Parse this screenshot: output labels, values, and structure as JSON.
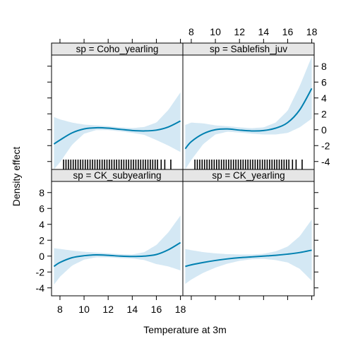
{
  "chart_data": {
    "type": "area",
    "xlabel": "Temperature at 3m",
    "ylabel": "Density effect",
    "xlim": [
      7.3,
      18.2
    ],
    "ylim": [
      -5.0,
      9.4
    ],
    "xticks": [
      8,
      10,
      12,
      14,
      16,
      18
    ],
    "yticks": [
      -4,
      -2,
      0,
      2,
      4,
      6,
      8
    ],
    "colors": {
      "line": "#0080b0",
      "band": "#d4e8f4",
      "strip_bg": "#e6e6e6",
      "frame": "#000000",
      "rug": "#000000"
    },
    "panels": [
      {
        "strip_label": "sp = Coho_yearling",
        "position": "top-left",
        "fit": {
          "x": [
            7.5,
            8,
            9,
            10,
            11,
            12,
            13,
            14,
            15,
            16,
            17,
            18
          ],
          "y": [
            -1.8,
            -1.3,
            -0.4,
            0.1,
            0.25,
            0.2,
            0.05,
            -0.1,
            -0.15,
            -0.05,
            0.35,
            1.1
          ]
        },
        "upper": [
          1.6,
          1.3,
          0.9,
          0.65,
          0.55,
          0.45,
          0.3,
          0.2,
          0.35,
          0.9,
          2.5,
          4.7
        ],
        "lower": [
          -5.0,
          -4.1,
          -1.9,
          -0.5,
          -0.05,
          -0.05,
          -0.2,
          -0.4,
          -0.65,
          -1.3,
          -2.0,
          -2.8
        ],
        "rug": [
          8.3,
          8.5,
          8.7,
          8.9,
          9.1,
          9.3,
          9.5,
          9.7,
          9.9,
          10.1,
          10.3,
          10.5,
          10.7,
          10.9,
          11.1,
          11.3,
          11.5,
          11.7,
          11.9,
          12.1,
          12.3,
          12.5,
          12.7,
          12.9,
          13.1,
          13.3,
          13.5,
          13.7,
          13.9,
          14.1,
          14.3,
          14.5,
          14.7,
          14.9,
          15.1,
          15.3,
          15.5,
          15.7,
          15.9,
          16.1,
          16.4,
          16.7,
          17.2
        ]
      },
      {
        "strip_label": "sp = Sablefish_juv",
        "position": "top-right",
        "fit": {
          "x": [
            7.5,
            8,
            9,
            10,
            11,
            12,
            13,
            14,
            15,
            16,
            17,
            18
          ],
          "y": [
            -2.4,
            -1.5,
            -0.5,
            0.0,
            0.1,
            -0.05,
            -0.15,
            -0.1,
            0.2,
            0.9,
            2.5,
            5.2
          ]
        },
        "upper": [
          0.6,
          0.9,
          0.8,
          0.55,
          0.45,
          0.3,
          0.2,
          0.3,
          0.9,
          2.4,
          5.5,
          9.2
        ],
        "lower": [
          -5.0,
          -3.8,
          -1.8,
          -0.6,
          -0.25,
          -0.35,
          -0.5,
          -0.6,
          -0.6,
          -0.4,
          0.3,
          1.4
        ],
        "rug": [
          8.3,
          8.5,
          8.7,
          8.9,
          9.1,
          9.3,
          9.5,
          9.7,
          9.9,
          10.1,
          10.3,
          10.5,
          10.7,
          10.9,
          11.1,
          11.3,
          11.5,
          11.7,
          11.9,
          12.1,
          12.3,
          12.5,
          12.7,
          12.9,
          13.1,
          13.3,
          13.5,
          13.7,
          13.9,
          14.1,
          14.3,
          14.5,
          14.7,
          14.9,
          15.1,
          15.3,
          15.5,
          15.7,
          15.9,
          16.1,
          16.4,
          16.7,
          17.2
        ]
      },
      {
        "strip_label": "sp = CK_subyearling",
        "position": "bottom-left",
        "fit": {
          "x": [
            7.5,
            8,
            9,
            10,
            11,
            12,
            13,
            14,
            15,
            16,
            17,
            18
          ],
          "y": [
            -1.3,
            -0.8,
            -0.2,
            0.05,
            0.15,
            0.1,
            0.0,
            -0.05,
            0.0,
            0.2,
            0.8,
            1.7
          ]
        },
        "upper": [
          1.0,
          0.9,
          0.7,
          0.55,
          0.45,
          0.35,
          0.25,
          0.2,
          0.5,
          1.4,
          3.0,
          5.1
        ],
        "lower": [
          -3.6,
          -2.6,
          -1.2,
          -0.45,
          -0.15,
          -0.15,
          -0.25,
          -0.3,
          -0.5,
          -1.0,
          -1.3,
          -1.8
        ]
      },
      {
        "strip_label": "sp = CK_yearling",
        "position": "bottom-right",
        "fit": {
          "x": [
            7.5,
            8,
            9,
            10,
            11,
            12,
            13,
            14,
            15,
            16,
            17,
            18
          ],
          "y": [
            -1.3,
            -1.1,
            -0.8,
            -0.55,
            -0.35,
            -0.2,
            -0.1,
            0.0,
            0.1,
            0.25,
            0.45,
            0.75
          ]
        },
        "upper": [
          0.9,
          0.75,
          0.5,
          0.35,
          0.25,
          0.2,
          0.2,
          0.3,
          0.6,
          1.2,
          2.5,
          4.6
        ],
        "lower": [
          -3.5,
          -2.95,
          -2.1,
          -1.45,
          -0.95,
          -0.6,
          -0.4,
          -0.35,
          -0.5,
          -0.8,
          -1.6,
          -3.1
        ]
      }
    ]
  }
}
